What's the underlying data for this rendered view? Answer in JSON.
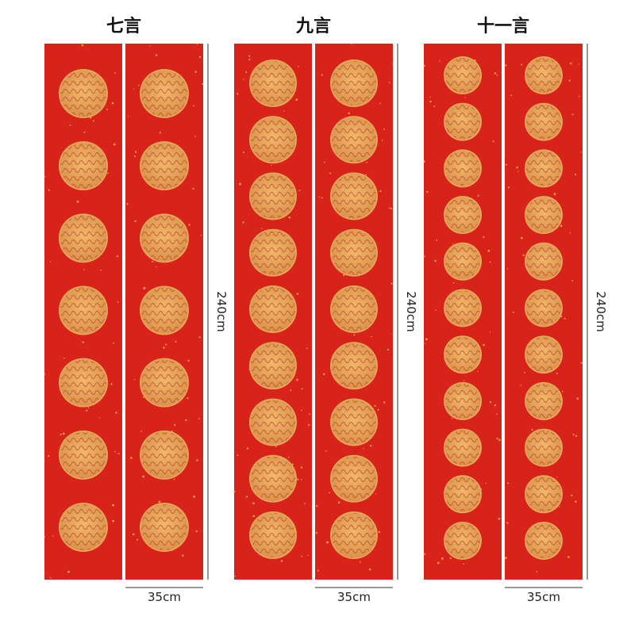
{
  "groups": [
    {
      "title": "七言",
      "height_label": "240cm",
      "width_label": "35cm"
    },
    {
      "title": "九言",
      "height_label": "240cm",
      "width_label": "35cm"
    },
    {
      "title": "十一言",
      "height_label": "240cm",
      "width_label": "35cm"
    }
  ]
}
